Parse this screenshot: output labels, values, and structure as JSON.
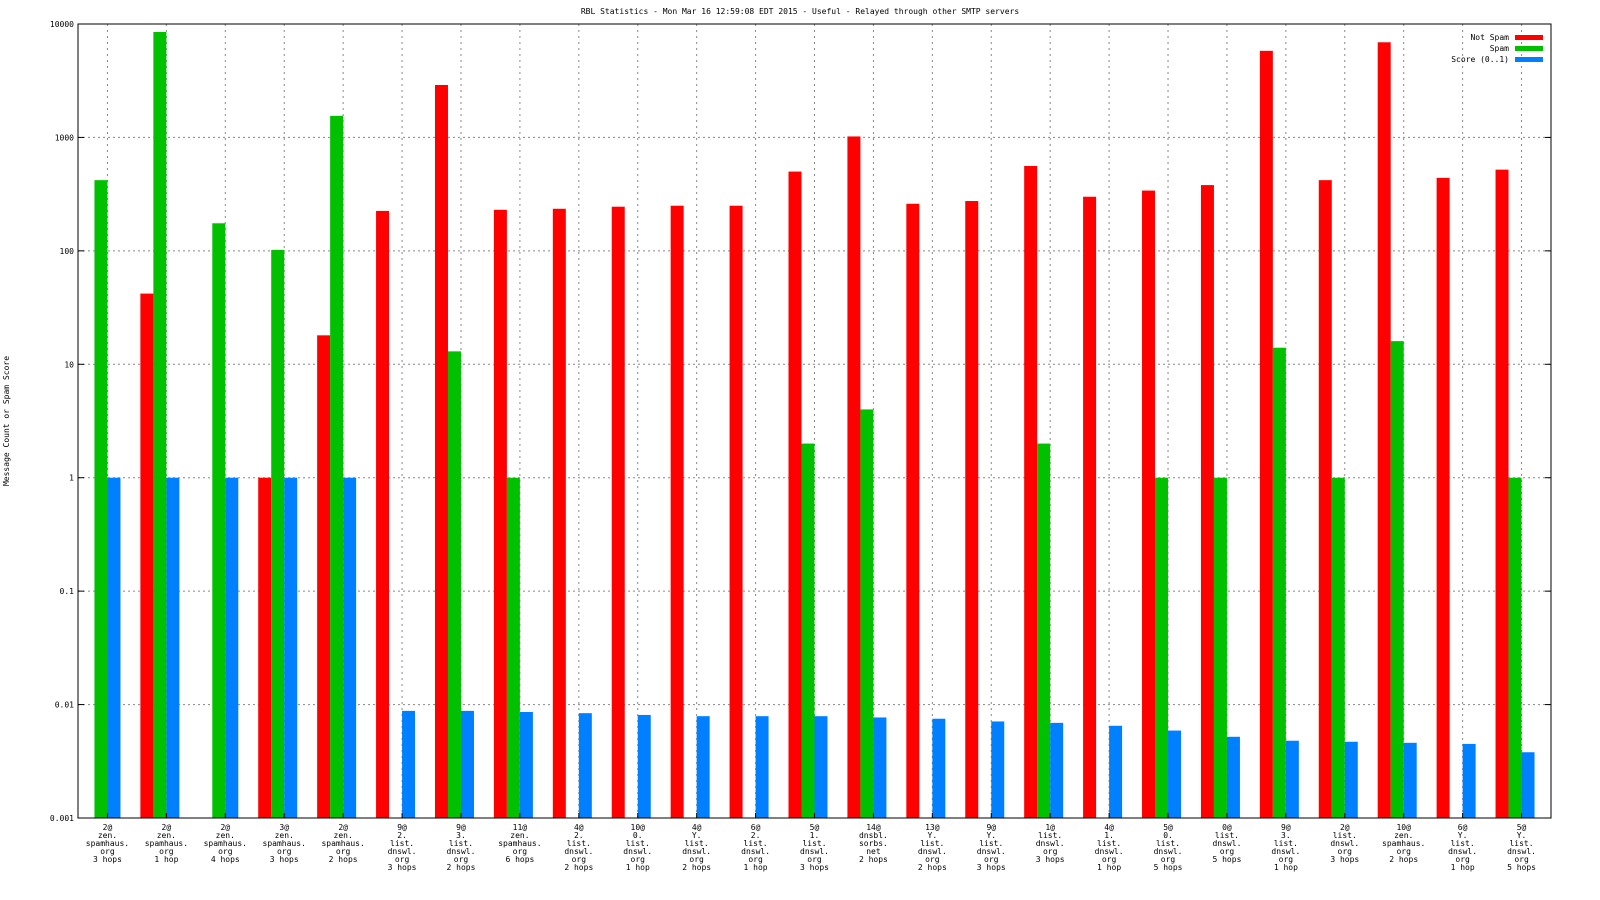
{
  "chart_data": {
    "type": "bar",
    "title": "RBL Statistics - Mon Mar 16 12:59:08 EDT 2015 - Useful - Relayed through other SMTP servers",
    "xlabel": "",
    "ylabel": "Message Count or Spam Score",
    "yscale": "log",
    "ylim": [
      0.001,
      10000
    ],
    "yticks": [
      "0.001",
      "0.01",
      "0.1",
      "1",
      "10",
      "100",
      "1000",
      "10000"
    ],
    "grid": true,
    "legend_position": "top-right",
    "categories": [
      [
        "2@",
        "zen.",
        "spamhaus.",
        "org",
        "3 hops"
      ],
      [
        "2@",
        "zen.",
        "spamhaus.",
        "org",
        "1 hop"
      ],
      [
        "2@",
        "zen.",
        "spamhaus.",
        "org",
        "4 hops"
      ],
      [
        "3@",
        "zen.",
        "spamhaus.",
        "org",
        "3 hops"
      ],
      [
        "2@",
        "zen.",
        "spamhaus.",
        "org",
        "2 hops"
      ],
      [
        "9@",
        "2.",
        "list.",
        "dnswl.",
        "org",
        "3 hops"
      ],
      [
        "9@",
        "3.",
        "list.",
        "dnswl.",
        "org",
        "2 hops"
      ],
      [
        "11@",
        "zen.",
        "spamhaus.",
        "org",
        "6 hops"
      ],
      [
        "4@",
        "2.",
        "list.",
        "dnswl.",
        "org",
        "2 hops"
      ],
      [
        "10@",
        "0.",
        "list.",
        "dnswl.",
        "org",
        "1 hop"
      ],
      [
        "4@",
        "Y.",
        "list.",
        "dnswl.",
        "org",
        "2 hops"
      ],
      [
        "6@",
        "2.",
        "list.",
        "dnswl.",
        "org",
        "1 hop"
      ],
      [
        "5@",
        "1.",
        "list.",
        "dnswl.",
        "org",
        "3 hops"
      ],
      [
        "14@",
        "dnsbl.",
        "sorbs.",
        "net",
        "2 hops"
      ],
      [
        "13@",
        "Y.",
        "list.",
        "dnswl.",
        "org",
        "2 hops"
      ],
      [
        "9@",
        "Y.",
        "list.",
        "dnswl.",
        "org",
        "3 hops"
      ],
      [
        "1@",
        "list.",
        "dnswl.",
        "org",
        "3 hops"
      ],
      [
        "4@",
        "1.",
        "list.",
        "dnswl.",
        "org",
        "1 hop"
      ],
      [
        "5@",
        "0.",
        "list.",
        "dnswl.",
        "org",
        "5 hops"
      ],
      [
        "0@",
        "list.",
        "dnswl.",
        "org",
        "5 hops"
      ],
      [
        "9@",
        "3.",
        "list.",
        "dnswl.",
        "org",
        "1 hop"
      ],
      [
        "2@",
        "list.",
        "dnswl.",
        "org",
        "3 hops"
      ],
      [
        "10@",
        "zen.",
        "spamhaus.",
        "org",
        "2 hops"
      ],
      [
        "6@",
        "Y.",
        "list.",
        "dnswl.",
        "org",
        "1 hop"
      ],
      [
        "5@",
        "Y.",
        "list.",
        "dnswl.",
        "org",
        "5 hops"
      ]
    ],
    "series": [
      {
        "name": "Not Spam",
        "color": "#ff0000",
        "values": [
          null,
          42,
          null,
          1,
          18,
          225,
          2900,
          230,
          235,
          245,
          250,
          250,
          500,
          1020,
          260,
          275,
          560,
          300,
          340,
          380,
          5800,
          420,
          6900,
          440,
          520
        ]
      },
      {
        "name": "Spam",
        "color": "#00c000",
        "values": [
          420,
          8500,
          175,
          102,
          1550,
          null,
          13,
          1,
          null,
          null,
          null,
          null,
          2,
          4,
          null,
          null,
          2,
          null,
          1,
          1,
          14,
          1,
          16,
          null,
          1
        ]
      },
      {
        "name": "Score (0..1)",
        "color": "#0080ff",
        "values": [
          1,
          1,
          1,
          1,
          1,
          0.0088,
          0.0088,
          0.0086,
          0.0084,
          0.0081,
          0.0079,
          0.0079,
          0.0079,
          0.0077,
          0.0075,
          0.0071,
          0.0069,
          0.0065,
          0.0059,
          0.0052,
          0.0048,
          0.0047,
          0.0046,
          0.0045,
          0.0038
        ]
      }
    ]
  }
}
